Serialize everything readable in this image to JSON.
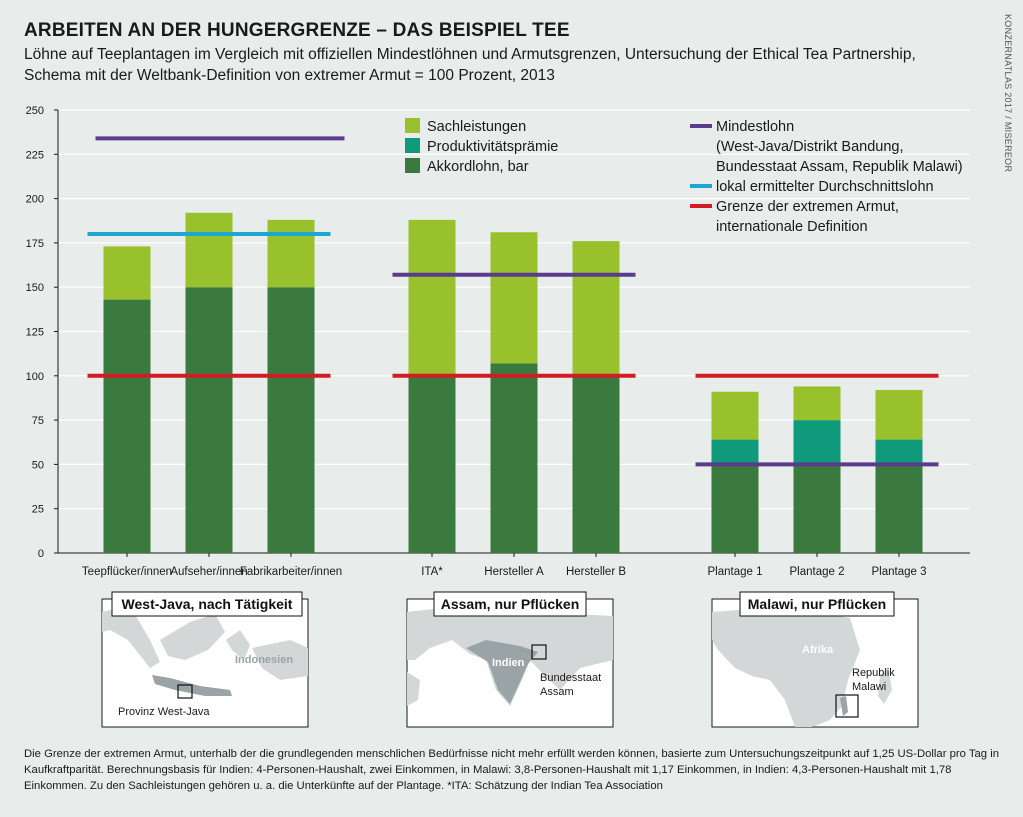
{
  "header": {
    "title": "ARBEITEN AN DER HUNGERGRENZE – DAS BEISPIEL TEE",
    "subtitle_line1": "Löhne auf Teeplantagen im Vergleich mit offiziellen Mindestlöhnen und Armutsgrenzen, Untersuchung der Ethical Tea Partnership,",
    "subtitle_line2": "Schema mit der Weltbank-Definition von extremer Armut = 100 Prozent, 2013",
    "credit": "KONZERNATLAS 2017 / MISEREOR"
  },
  "colors": {
    "sachleistungen": "#98c12b",
    "produktivitaet": "#0f9a7c",
    "akkord": "#3a7a3e",
    "mindestlohn": "#5b3b8c",
    "durchschnitt": "#1ea6d3",
    "armut": "#d01c22",
    "map_water": "#ffffff",
    "map_land": "#d3d7d8",
    "map_highlight": "#9aa3a5"
  },
  "legend": {
    "stack": [
      {
        "key": "sachleistungen",
        "label": "Sachleistungen"
      },
      {
        "key": "produktivitaet",
        "label": "Produktivitätsprämie"
      },
      {
        "key": "akkord",
        "label": "Akkordlohn, bar"
      }
    ],
    "lines": [
      {
        "key": "mindestlohn",
        "label_lines": [
          "Mindestlohn",
          "(West-Java/Distrikt Bandung,",
          "Bundesstaat Assam, Republik Malawi)"
        ]
      },
      {
        "key": "durchschnitt",
        "label_lines": [
          "lokal ermittelter Durchschnittslohn"
        ]
      },
      {
        "key": "armut",
        "label_lines": [
          "Grenze der extremen Armut,",
          "internationale Definition"
        ]
      }
    ]
  },
  "chart_data": {
    "type": "bar",
    "stacked": true,
    "ylim": [
      0,
      250
    ],
    "yticks": [
      0,
      25,
      50,
      75,
      100,
      125,
      150,
      175,
      200,
      225,
      250
    ],
    "grid": true,
    "legend_position": "top",
    "categories": [
      "Teepflücker/innen",
      "Aufseher/innen",
      "Fabrikarbeiter/innen",
      "ITA*",
      "Hersteller A",
      "Hersteller B",
      "Plantage 1",
      "Plantage 2",
      "Plantage 3"
    ],
    "series": [
      {
        "key": "akkord",
        "name": "Akkordlohn, bar",
        "values": [
          143,
          150,
          150,
          100,
          107,
          100,
          50,
          50,
          50
        ]
      },
      {
        "key": "produktivitaet",
        "name": "Produktivitätsprämie",
        "values": [
          0,
          0,
          0,
          0,
          0,
          0,
          14,
          25,
          14
        ]
      },
      {
        "key": "sachleistungen",
        "name": "Sachleistungen",
        "values": [
          30,
          42,
          38,
          88,
          74,
          76,
          27,
          19,
          28
        ]
      }
    ],
    "groups": [
      {
        "name": "West-Java, nach Tätigkeit",
        "category_indices": [
          0,
          1,
          2
        ],
        "mindestlohn": 234,
        "durchschnitt": 180,
        "armut": 100
      },
      {
        "name": "Assam, nur Pflücken",
        "category_indices": [
          3,
          4,
          5
        ],
        "mindestlohn": 157,
        "armut": 100
      },
      {
        "name": "Malawi, nur Pflücken",
        "category_indices": [
          6,
          7,
          8
        ],
        "mindestlohn": 50,
        "armut": 100
      }
    ]
  },
  "maps": [
    {
      "title": "West-Java, nach Tätigkeit",
      "labels": {
        "land": "Indonesien",
        "marker": "Provinz West-Java"
      }
    },
    {
      "title": "Assam, nur Pflücken",
      "labels": {
        "land": "Indien",
        "marker_line1": "Bundesstaat",
        "marker_line2": "Assam"
      }
    },
    {
      "title": "Malawi, nur Pflücken",
      "labels": {
        "land": "Afrika",
        "marker_line1": "Republik",
        "marker_line2": "Malawi"
      }
    }
  ],
  "footnote": "Die Grenze der extremen Armut, unterhalb der die grundlegenden menschlichen Bedürfnisse nicht mehr erfüllt werden können, basierte zum Untersuchungszeitpunkt auf 1,25 US-Dollar pro Tag in Kaufkraftparität. Berechnungsbasis für Indien: 4-Personen-Haushalt, zwei Einkommen, in Malawi: 3,8-Personen-Haushalt mit 1,17 Einkommen, in Indien: 4,3-Personen-Haushalt mit 1,78 Einkommen. Zu den Sachleistungen gehören u. a. die Unterkünfte auf der Plantage.  *ITA: Schätzung der Indian Tea Association"
}
